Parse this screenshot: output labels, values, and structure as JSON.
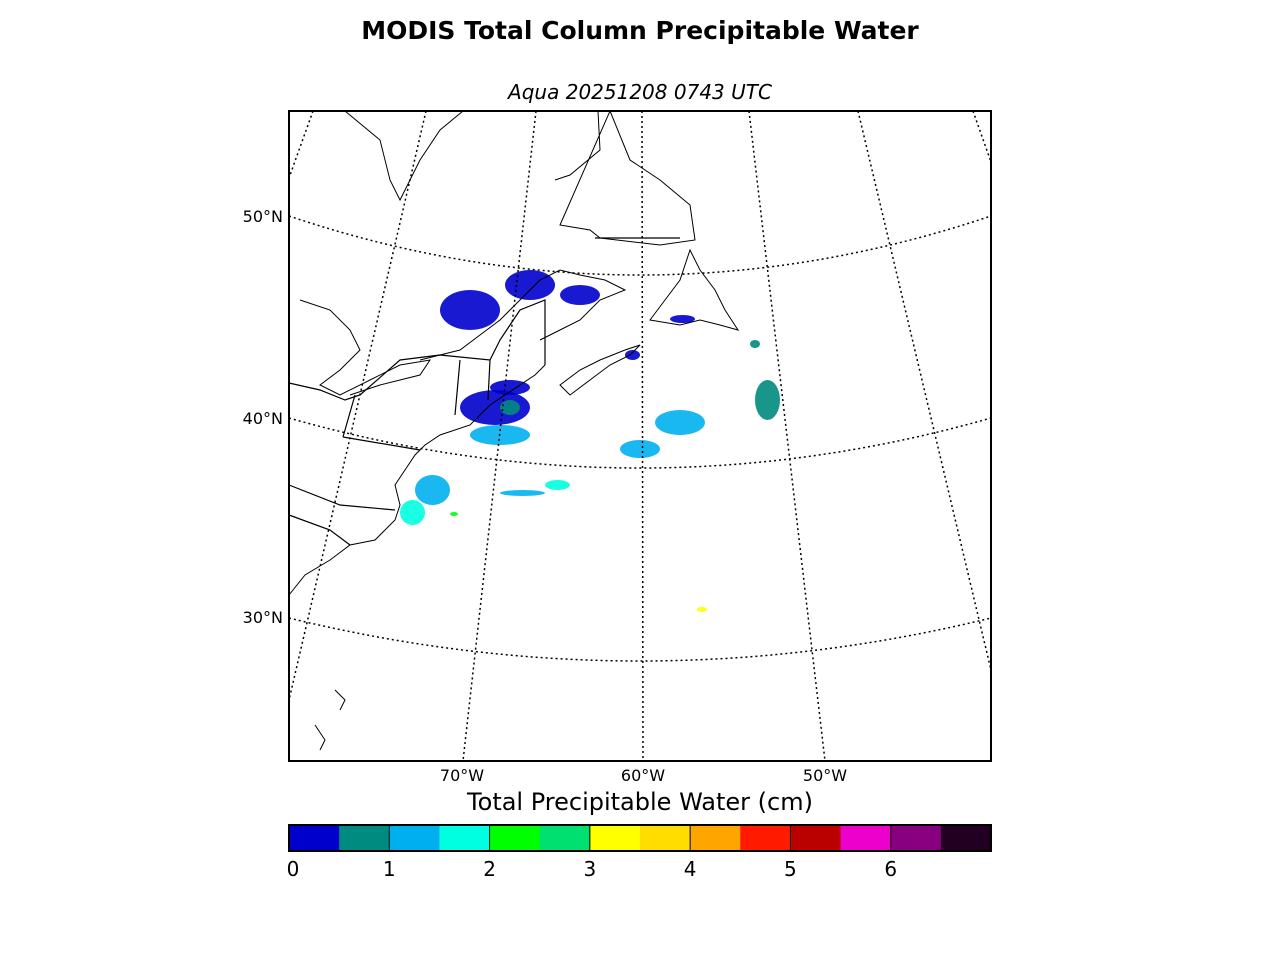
{
  "title": "MODIS Total Column Precipitable Water",
  "subtitle": "Aqua 20251208 0743 UTC",
  "map": {
    "lat_labels": [
      "50°N",
      "40°N",
      "30°N"
    ],
    "lon_labels": [
      "70°W",
      "60°W",
      "50°W"
    ]
  },
  "colorbar": {
    "label": "Total Precipitable Water (cm)",
    "ticks": [
      "0",
      "1",
      "2",
      "3",
      "4",
      "5",
      "6"
    ],
    "range": [
      0,
      7
    ],
    "colors": [
      "#0000cc",
      "#008b80",
      "#00b0ee",
      "#00ffe0",
      "#00ff00",
      "#00e070",
      "#ffff00",
      "#ffdd00",
      "#ffa500",
      "#ff1a00",
      "#bb0000",
      "#ee00cc",
      "#880080",
      "#220022"
    ]
  }
}
